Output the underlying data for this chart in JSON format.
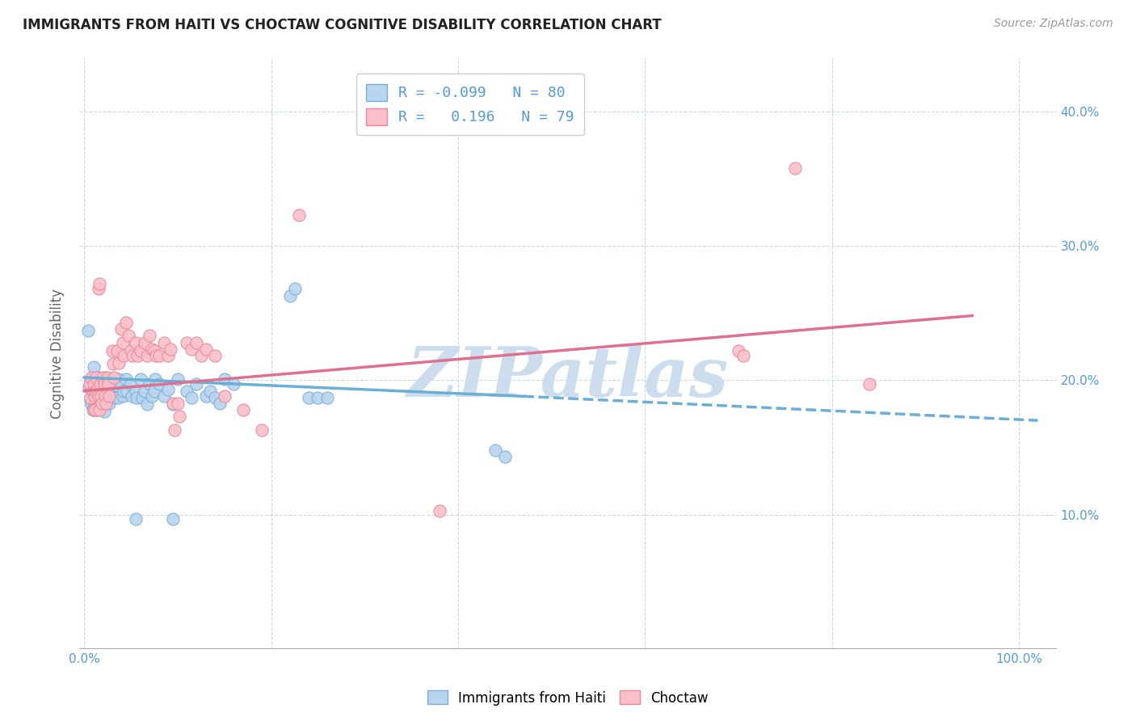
{
  "title": "IMMIGRANTS FROM HAITI VS CHOCTAW COGNITIVE DISABILITY CORRELATION CHART",
  "source": "Source: ZipAtlas.com",
  "ylabel": "Cognitive Disability",
  "y_ticks": [
    0.0,
    0.1,
    0.2,
    0.3,
    0.4
  ],
  "y_tick_labels_right": [
    "",
    "10.0%",
    "20.0%",
    "30.0%",
    "40.0%"
  ],
  "xlim": [
    -0.005,
    1.04
  ],
  "ylim": [
    0.0,
    0.44
  ],
  "legend_R1": "-0.099",
  "legend_N1": "80",
  "legend_R2": "0.196",
  "legend_N2": "79",
  "color_blue_fill": "#b8d4ee",
  "color_pink_fill": "#f9c0ca",
  "color_blue_edge": "#7ab0d8",
  "color_pink_edge": "#e8889a",
  "color_blue_line": "#6baed6",
  "color_pink_line": "#e07090",
  "watermark": "ZIPatlas",
  "watermark_color": "#ccdded",
  "grid_color": "#c8d8e8",
  "title_color": "#222222",
  "axis_label_color": "#5599dd",
  "blue_scatter": [
    [
      0.005,
      0.195
    ],
    [
      0.007,
      0.2
    ],
    [
      0.007,
      0.185
    ],
    [
      0.008,
      0.182
    ],
    [
      0.009,
      0.178
    ],
    [
      0.01,
      0.21
    ],
    [
      0.01,
      0.192
    ],
    [
      0.01,
      0.188
    ],
    [
      0.01,
      0.18
    ],
    [
      0.011,
      0.2
    ],
    [
      0.012,
      0.192
    ],
    [
      0.012,
      0.182
    ],
    [
      0.013,
      0.196
    ],
    [
      0.013,
      0.186
    ],
    [
      0.014,
      0.178
    ],
    [
      0.015,
      0.202
    ],
    [
      0.016,
      0.192
    ],
    [
      0.016,
      0.186
    ],
    [
      0.017,
      0.181
    ],
    [
      0.018,
      0.197
    ],
    [
      0.019,
      0.187
    ],
    [
      0.02,
      0.183
    ],
    [
      0.021,
      0.177
    ],
    [
      0.022,
      0.202
    ],
    [
      0.022,
      0.193
    ],
    [
      0.023,
      0.187
    ],
    [
      0.025,
      0.197
    ],
    [
      0.026,
      0.187
    ],
    [
      0.027,
      0.183
    ],
    [
      0.03,
      0.2
    ],
    [
      0.031,
      0.192
    ],
    [
      0.032,
      0.187
    ],
    [
      0.035,
      0.196
    ],
    [
      0.036,
      0.187
    ],
    [
      0.037,
      0.201
    ],
    [
      0.04,
      0.197
    ],
    [
      0.041,
      0.188
    ],
    [
      0.042,
      0.192
    ],
    [
      0.045,
      0.201
    ],
    [
      0.046,
      0.192
    ],
    [
      0.05,
      0.197
    ],
    [
      0.051,
      0.188
    ],
    [
      0.055,
      0.192
    ],
    [
      0.056,
      0.187
    ],
    [
      0.06,
      0.201
    ],
    [
      0.062,
      0.187
    ],
    [
      0.065,
      0.192
    ],
    [
      0.067,
      0.182
    ],
    [
      0.07,
      0.197
    ],
    [
      0.072,
      0.188
    ],
    [
      0.075,
      0.192
    ],
    [
      0.076,
      0.201
    ],
    [
      0.08,
      0.197
    ],
    [
      0.085,
      0.188
    ],
    [
      0.09,
      0.193
    ],
    [
      0.095,
      0.182
    ],
    [
      0.1,
      0.201
    ],
    [
      0.11,
      0.192
    ],
    [
      0.115,
      0.187
    ],
    [
      0.12,
      0.197
    ],
    [
      0.13,
      0.188
    ],
    [
      0.135,
      0.192
    ],
    [
      0.14,
      0.187
    ],
    [
      0.145,
      0.183
    ],
    [
      0.15,
      0.201
    ],
    [
      0.16,
      0.197
    ],
    [
      0.22,
      0.263
    ],
    [
      0.225,
      0.268
    ],
    [
      0.24,
      0.187
    ],
    [
      0.25,
      0.187
    ],
    [
      0.26,
      0.187
    ],
    [
      0.44,
      0.148
    ],
    [
      0.45,
      0.143
    ],
    [
      0.055,
      0.097
    ],
    [
      0.095,
      0.097
    ],
    [
      0.004,
      0.237
    ]
  ],
  "pink_scatter": [
    [
      0.006,
      0.197
    ],
    [
      0.007,
      0.187
    ],
    [
      0.008,
      0.202
    ],
    [
      0.009,
      0.192
    ],
    [
      0.01,
      0.178
    ],
    [
      0.01,
      0.197
    ],
    [
      0.011,
      0.188
    ],
    [
      0.012,
      0.192
    ],
    [
      0.012,
      0.178
    ],
    [
      0.013,
      0.202
    ],
    [
      0.014,
      0.193
    ],
    [
      0.015,
      0.188
    ],
    [
      0.016,
      0.178
    ],
    [
      0.017,
      0.197
    ],
    [
      0.018,
      0.188
    ],
    [
      0.019,
      0.183
    ],
    [
      0.02,
      0.202
    ],
    [
      0.021,
      0.197
    ],
    [
      0.022,
      0.188
    ],
    [
      0.023,
      0.183
    ],
    [
      0.025,
      0.202
    ],
    [
      0.026,
      0.197
    ],
    [
      0.027,
      0.188
    ],
    [
      0.03,
      0.222
    ],
    [
      0.031,
      0.212
    ],
    [
      0.032,
      0.202
    ],
    [
      0.035,
      0.222
    ],
    [
      0.037,
      0.213
    ],
    [
      0.04,
      0.238
    ],
    [
      0.041,
      0.228
    ],
    [
      0.042,
      0.218
    ],
    [
      0.045,
      0.243
    ],
    [
      0.047,
      0.233
    ],
    [
      0.05,
      0.222
    ],
    [
      0.052,
      0.218
    ],
    [
      0.055,
      0.228
    ],
    [
      0.057,
      0.218
    ],
    [
      0.06,
      0.222
    ],
    [
      0.065,
      0.228
    ],
    [
      0.067,
      0.218
    ],
    [
      0.07,
      0.233
    ],
    [
      0.072,
      0.223
    ],
    [
      0.075,
      0.222
    ],
    [
      0.077,
      0.218
    ],
    [
      0.08,
      0.218
    ],
    [
      0.085,
      0.228
    ],
    [
      0.09,
      0.218
    ],
    [
      0.092,
      0.223
    ],
    [
      0.095,
      0.183
    ],
    [
      0.097,
      0.163
    ],
    [
      0.1,
      0.183
    ],
    [
      0.102,
      0.173
    ],
    [
      0.11,
      0.228
    ],
    [
      0.115,
      0.223
    ],
    [
      0.12,
      0.228
    ],
    [
      0.125,
      0.218
    ],
    [
      0.13,
      0.223
    ],
    [
      0.14,
      0.218
    ],
    [
      0.15,
      0.188
    ],
    [
      0.17,
      0.178
    ],
    [
      0.19,
      0.163
    ],
    [
      0.015,
      0.268
    ],
    [
      0.016,
      0.272
    ],
    [
      0.23,
      0.323
    ],
    [
      0.38,
      0.103
    ],
    [
      0.7,
      0.222
    ],
    [
      0.705,
      0.218
    ],
    [
      0.76,
      0.358
    ],
    [
      0.84,
      0.197
    ]
  ],
  "blue_trend": [
    0.0,
    0.47,
    0.202,
    0.188
  ],
  "blue_dash": [
    0.47,
    1.02,
    0.188,
    0.17
  ],
  "pink_trend": [
    0.0,
    0.95,
    0.192,
    0.248
  ]
}
